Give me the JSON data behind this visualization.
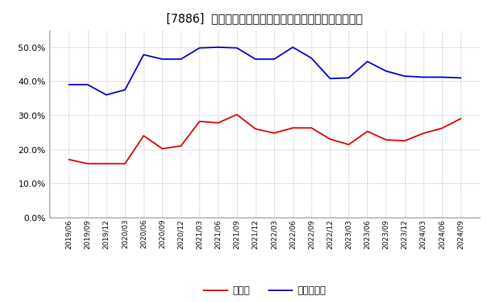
{
  "title": "[7886]  現顔金、有利子負債の総資産に対する比率の推移",
  "x_labels": [
    "2019/06",
    "2019/09",
    "2019/12",
    "2020/03",
    "2020/06",
    "2020/09",
    "2020/12",
    "2021/03",
    "2021/06",
    "2021/09",
    "2021/12",
    "2022/03",
    "2022/06",
    "2022/09",
    "2022/12",
    "2023/03",
    "2023/06",
    "2023/09",
    "2023/12",
    "2024/03",
    "2024/06",
    "2024/09"
  ],
  "cash": [
    0.17,
    0.158,
    0.158,
    0.158,
    0.24,
    0.202,
    0.21,
    0.282,
    0.278,
    0.302,
    0.26,
    0.248,
    0.263,
    0.263,
    0.23,
    0.214,
    0.253,
    0.228,
    0.225,
    0.247,
    0.262,
    0.29
  ],
  "debt": [
    0.39,
    0.39,
    0.36,
    0.375,
    0.478,
    0.465,
    0.465,
    0.498,
    0.5,
    0.498,
    0.465,
    0.465,
    0.5,
    0.468,
    0.408,
    0.41,
    0.458,
    0.43,
    0.415,
    0.412,
    0.412,
    0.41
  ],
  "cash_color": "#dd0000",
  "debt_color": "#0000cc",
  "bg_color": "#ffffff",
  "grid_color": "#aaaaaa",
  "legend_cash": "現顔金",
  "legend_debt": "有利子負債",
  "ylim": [
    0.0,
    0.55
  ],
  "yticks": [
    0.0,
    0.1,
    0.2,
    0.3,
    0.4,
    0.5
  ],
  "title_fontsize": 12,
  "legend_fontsize": 10
}
